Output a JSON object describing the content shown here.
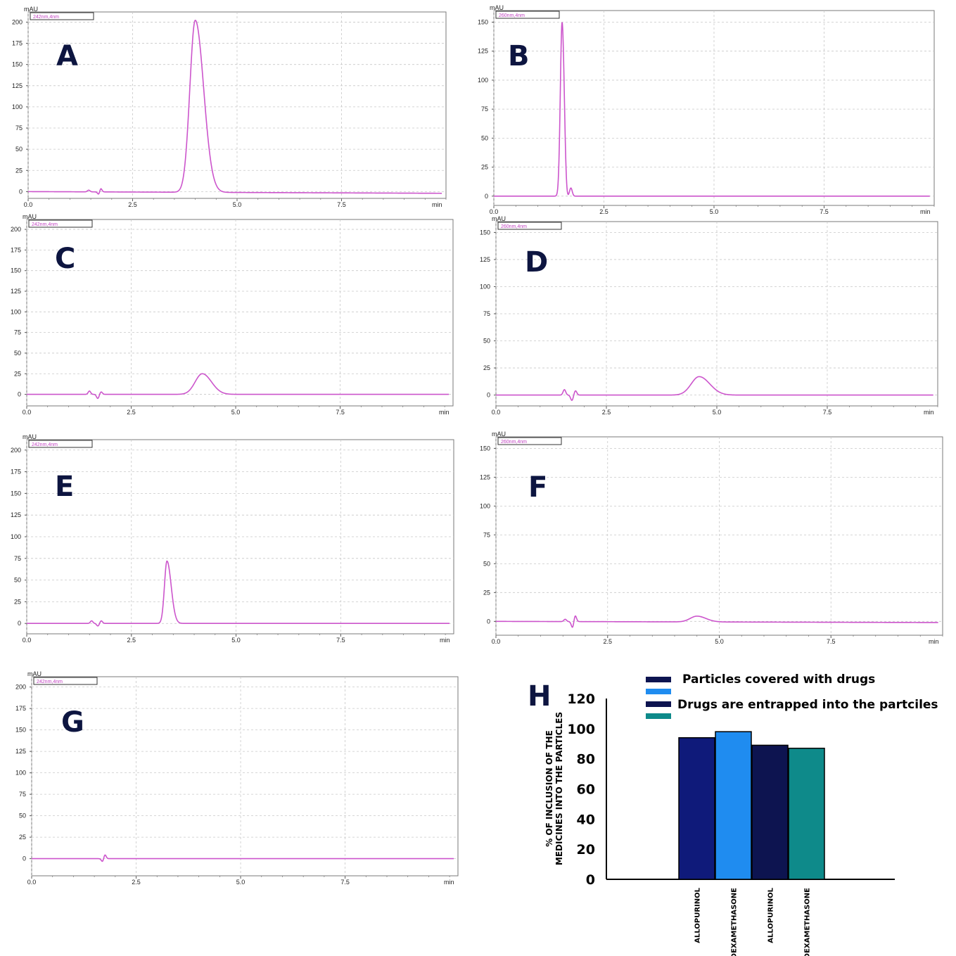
{
  "colors": {
    "trace": "#cc55cc",
    "grid": "#c8c8c8",
    "frame": "#7a7a7a",
    "letter": "#0d1540"
  },
  "chart_data": [
    {
      "id": "A",
      "type": "line",
      "panel_label": "A",
      "y_unit": "mAU",
      "x_unit": "min",
      "legend_box": "242nm,4nm",
      "xlim": [
        0,
        10.0
      ],
      "ylim": [
        -8,
        212
      ],
      "xticks": [
        "0.0",
        "2.5",
        "5.0",
        "7.5"
      ],
      "yticks": [
        "0",
        "25",
        "50",
        "75",
        "100",
        "125",
        "150",
        "175",
        "200"
      ],
      "grid": true,
      "baseline": [
        [
          0,
          0
        ],
        [
          9.9,
          -2
        ]
      ],
      "disturbances": [
        [
          1.45,
          2
        ],
        [
          1.7,
          -5
        ],
        [
          1.73,
          6
        ]
      ],
      "peaks": [
        {
          "x": 4.0,
          "height": 203,
          "width_left": 0.13,
          "width_right": 0.2
        }
      ]
    },
    {
      "id": "B",
      "type": "line",
      "panel_label": "B",
      "y_unit": "mAU",
      "x_unit": "min",
      "legend_box": "260nm,4nm",
      "xlim": [
        0,
        10.0
      ],
      "ylim": [
        -8,
        160
      ],
      "xticks": [
        "0.0",
        "2.5",
        "5.0",
        "7.5"
      ],
      "yticks": [
        "0",
        "25",
        "50",
        "75",
        "100",
        "125",
        "150"
      ],
      "grid": true,
      "baseline": [
        [
          0,
          0
        ],
        [
          9.9,
          0
        ]
      ],
      "disturbances": [
        [
          1.65,
          -6
        ],
        [
          1.75,
          7
        ]
      ],
      "peaks": [
        {
          "x": 1.55,
          "height": 150,
          "width_left": 0.04,
          "width_right": 0.05
        }
      ]
    },
    {
      "id": "C",
      "type": "line",
      "panel_label": "C",
      "y_unit": "mAU",
      "x_unit": "min",
      "legend_box": "242nm,4nm",
      "xlim": [
        0,
        10.2
      ],
      "ylim": [
        -14,
        212
      ],
      "xticks": [
        "0.0",
        "2.5",
        "5.0",
        "7.5"
      ],
      "yticks": [
        "0",
        "25",
        "50",
        "75",
        "100",
        "125",
        "150",
        "175",
        "200"
      ],
      "grid": true,
      "baseline": [
        [
          0,
          0
        ],
        [
          10.1,
          0
        ]
      ],
      "disturbances": [
        [
          1.5,
          4
        ],
        [
          1.7,
          -5
        ],
        [
          1.78,
          3
        ]
      ],
      "peaks": [
        {
          "x": 4.2,
          "height": 25,
          "width_left": 0.17,
          "width_right": 0.22
        }
      ]
    },
    {
      "id": "D",
      "type": "line",
      "panel_label": "D",
      "y_unit": "mAU",
      "x_unit": "min",
      "legend_box": "260nm,4nm",
      "xlim": [
        0,
        10.0
      ],
      "ylim": [
        -10,
        160
      ],
      "xticks": [
        "0.0",
        "2.5",
        "5.0",
        "7.5"
      ],
      "yticks": [
        "0",
        "25",
        "50",
        "75",
        "100",
        "125",
        "150"
      ],
      "grid": true,
      "baseline": [
        [
          0,
          0
        ],
        [
          9.9,
          0
        ]
      ],
      "disturbances": [
        [
          1.55,
          5
        ],
        [
          1.72,
          -5
        ],
        [
          1.8,
          4
        ]
      ],
      "peaks": [
        {
          "x": 4.6,
          "height": 17,
          "width_left": 0.18,
          "width_right": 0.24
        }
      ]
    },
    {
      "id": "E",
      "type": "line",
      "panel_label": "E",
      "y_unit": "mAU",
      "x_unit": "min",
      "legend_box": "242nm,4nm",
      "xlim": [
        0,
        10.2
      ],
      "ylim": [
        -12,
        212
      ],
      "xticks": [
        "0.0",
        "2.5",
        "5.0",
        "7.5"
      ],
      "yticks": [
        "0",
        "25",
        "50",
        "75",
        "100",
        "125",
        "150",
        "175",
        "200"
      ],
      "grid": true,
      "baseline": [
        [
          0,
          0
        ],
        [
          10.1,
          0
        ]
      ],
      "disturbances": [
        [
          1.55,
          3
        ],
        [
          1.7,
          -3
        ],
        [
          1.78,
          3
        ]
      ],
      "peaks": [
        {
          "x": 3.35,
          "height": 72,
          "width_left": 0.06,
          "width_right": 0.1
        }
      ]
    },
    {
      "id": "F",
      "type": "line",
      "panel_label": "F",
      "y_unit": "mAU",
      "x_unit": "min",
      "legend_box": "260nm,4nm",
      "xlim": [
        0,
        10.0
      ],
      "ylim": [
        -12,
        160
      ],
      "xticks": [
        "0.0",
        "2.5",
        "5.0",
        "7.5"
      ],
      "yticks": [
        "0",
        "25",
        "50",
        "75",
        "100",
        "125",
        "150"
      ],
      "grid": true,
      "baseline": [
        [
          0,
          0
        ],
        [
          9.9,
          -1
        ]
      ],
      "disturbances": [
        [
          1.55,
          2
        ],
        [
          1.72,
          -6
        ],
        [
          1.77,
          6
        ]
      ],
      "peaks": [
        {
          "x": 4.5,
          "height": 5,
          "width_left": 0.15,
          "width_right": 0.2
        }
      ]
    },
    {
      "id": "G",
      "type": "line",
      "panel_label": "G",
      "y_unit": "mAU",
      "x_unit": "min",
      "legend_box": "242nm,4nm",
      "xlim": [
        0,
        10.2
      ],
      "ylim": [
        -20,
        212
      ],
      "xticks": [
        "0.0",
        "2.5",
        "5.0",
        "7.5"
      ],
      "yticks": [
        "0",
        "25",
        "50",
        "75",
        "100",
        "125",
        "150",
        "175",
        "200"
      ],
      "grid": true,
      "baseline": [
        [
          0,
          0
        ],
        [
          10.1,
          0
        ]
      ],
      "disturbances": [
        [
          1.7,
          -4
        ],
        [
          1.75,
          5
        ]
      ],
      "peaks": []
    },
    {
      "id": "H",
      "type": "bar",
      "panel_label": "H",
      "ylabel": [
        "% OF INCLUSION OF THE",
        "MEDICINES INTO THE PARTICLES"
      ],
      "ylim": [
        0,
        120
      ],
      "yticks": [
        "0",
        "20",
        "40",
        "60",
        "80",
        "100",
        "120"
      ],
      "categories": [
        "ALLOPURINOL",
        "DEXAMETHASONE",
        "ALLOPURINOL",
        "DEXAMETHASONE"
      ],
      "values": [
        94,
        98,
        89,
        87
      ],
      "bar_colors": [
        "#0f1a7a",
        "#1f8cf0",
        "#0d1450",
        "#0e8a8a"
      ],
      "legend": [
        {
          "label": "Particles covered  with drugs",
          "colors": [
            "#0d1450",
            "#1f8cf0"
          ]
        },
        {
          "label": "Drugs are entrapped into the partciles",
          "colors": [
            "#0d1450",
            "#0e8a8a"
          ]
        }
      ],
      "legend_placement": "top-right",
      "grid": false
    }
  ]
}
